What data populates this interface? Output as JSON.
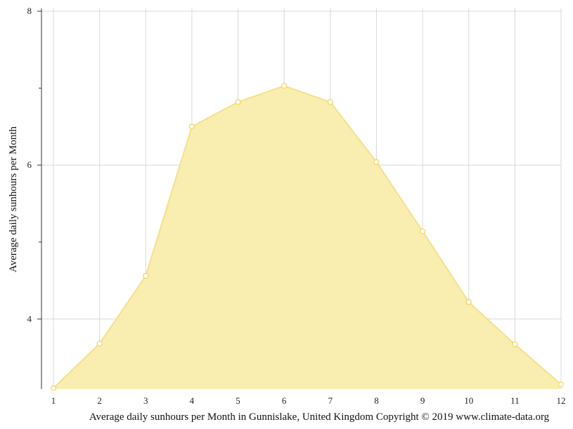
{
  "chart_data": {
    "type": "area",
    "x": [
      1,
      2,
      3,
      4,
      5,
      6,
      7,
      8,
      9,
      10,
      11,
      12
    ],
    "series": [
      {
        "values": [
          3.1,
          3.68,
          4.56,
          6.5,
          6.82,
          7.03,
          6.82,
          6.04,
          5.14,
          4.22,
          3.67,
          3.15
        ]
      }
    ],
    "ylabel": "Average daily sunhours per Month",
    "xlabel": "",
    "title": "",
    "xlim": [
      1,
      12
    ],
    "ylim": [
      3.09,
      8
    ],
    "ytick_labels": [
      "4",
      "6",
      "8"
    ],
    "yticks_minor": [
      5,
      7
    ],
    "xtick_labels": [
      "1",
      "2",
      "3",
      "4",
      "5",
      "6",
      "7",
      "8",
      "9",
      "10",
      "11",
      "12"
    ],
    "grid": true,
    "caption": "Average daily sunhours per Month in Gunnislake, United Kingdom Copyright © 2019 www.climate-data.org",
    "colors": {
      "fill": "#f9eeb0",
      "line": "#f5e088",
      "marker_stroke": "#f0d45c",
      "grid": "#d8d8d8",
      "axis": "#333333"
    }
  }
}
